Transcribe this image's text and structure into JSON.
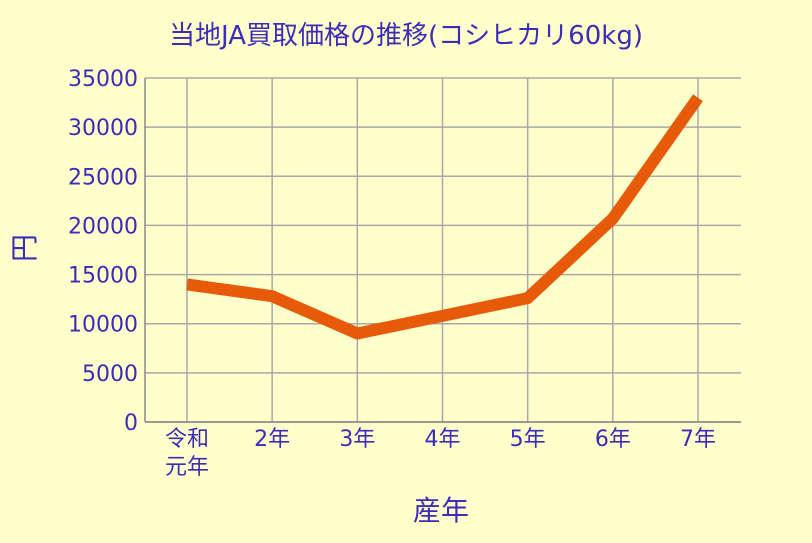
{
  "chart_data": {
    "type": "line",
    "title": "当地JA買取価格の推移(コシヒカリ60kg)",
    "xlabel": "産年",
    "ylabel": "円",
    "categories": [
      "令和\n元年",
      "2年",
      "3年",
      "4年",
      "5年",
      "6年",
      "7年"
    ],
    "series": [
      {
        "values": [
          14000,
          12800,
          9000,
          10800,
          12600,
          20700,
          33000
        ]
      }
    ],
    "ylim": [
      0,
      35000
    ],
    "yticks": [
      0,
      5000,
      10000,
      15000,
      20000,
      25000,
      30000,
      35000
    ],
    "grid": true,
    "legend": "none",
    "colors": {
      "background": "#ffffcc",
      "line": "#e65a0a",
      "grid": "#a8a8a8",
      "text": "#3b2db8",
      "axis": "#888888"
    }
  }
}
